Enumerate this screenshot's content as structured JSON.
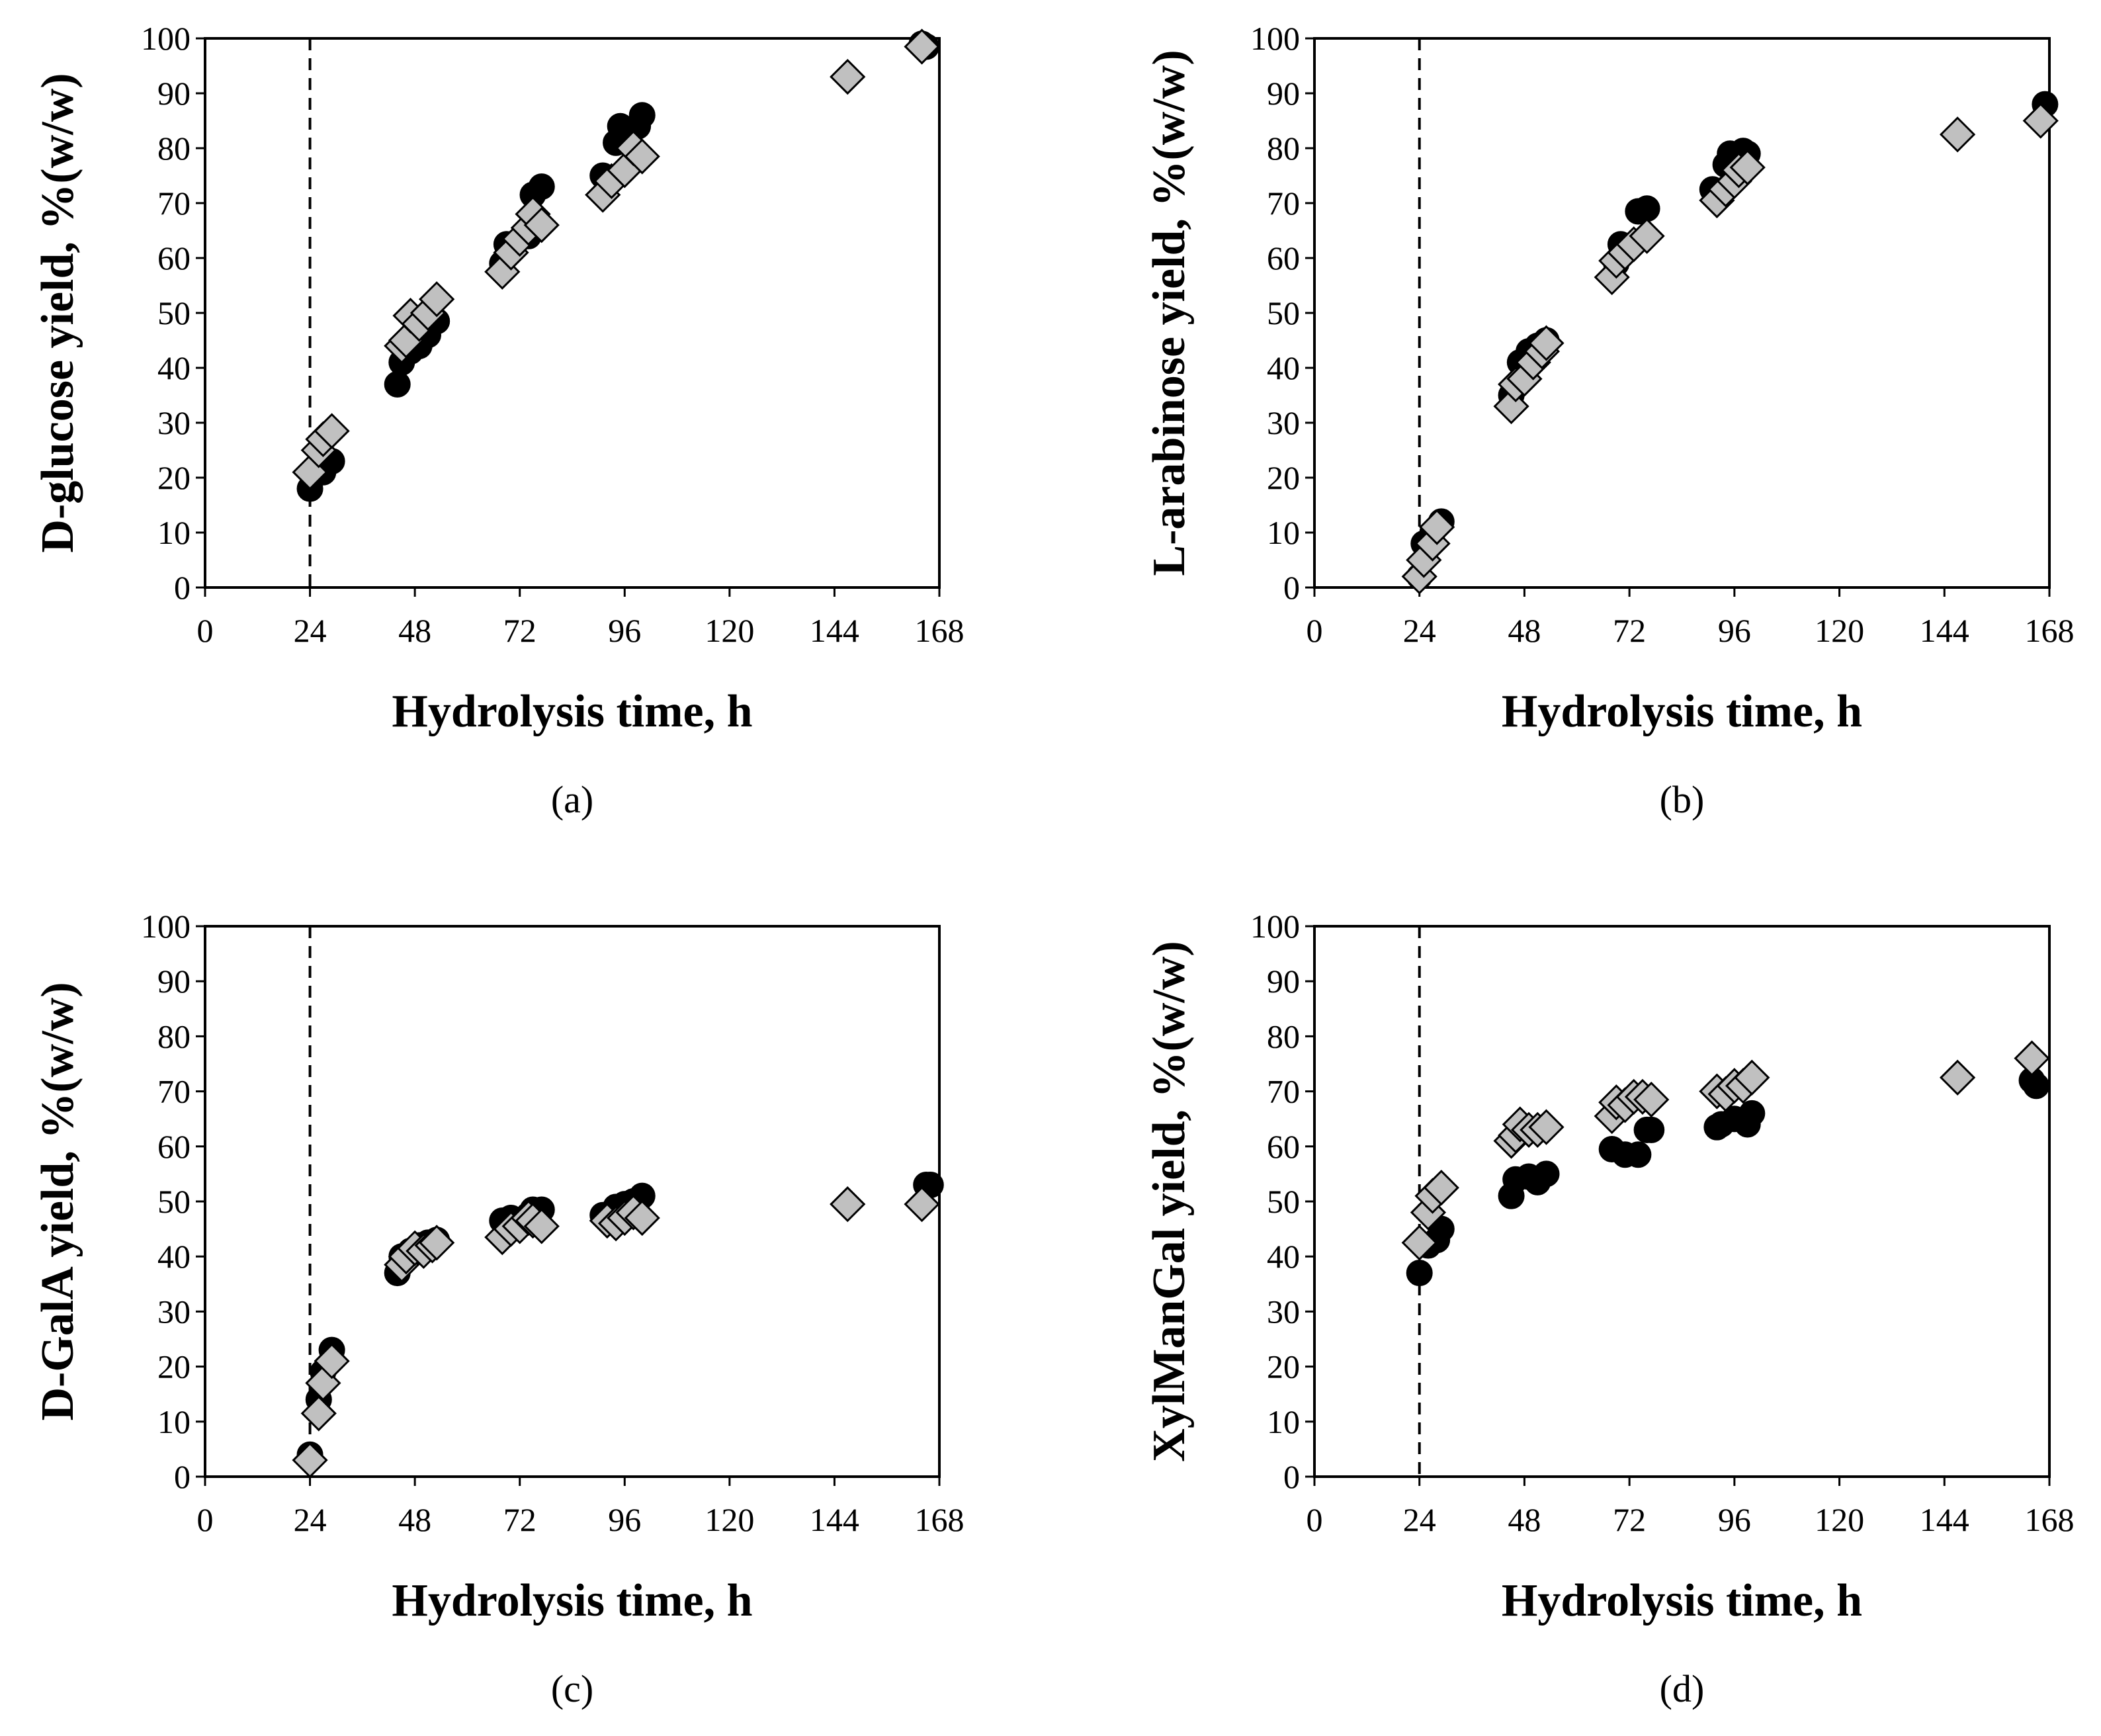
{
  "figure": {
    "panels": [
      "(a)",
      "(b)",
      "(c)",
      "(d)"
    ]
  },
  "chart_data": [
    {
      "type": "scatter",
      "caption": "(a)",
      "xlabel": "Hydrolysis time, h",
      "ylabel": "D-glucose yield, %(w/w)",
      "xlim": [
        0,
        168
      ],
      "ylim": [
        0,
        100
      ],
      "xticks": [
        0,
        24,
        48,
        72,
        96,
        120,
        144,
        168
      ],
      "yticks": [
        0,
        10,
        20,
        30,
        40,
        50,
        60,
        70,
        80,
        90,
        100
      ],
      "vline_x": 24,
      "series": [
        {
          "name": "circle",
          "marker": "circle",
          "color": "#000000",
          "points": [
            [
              24,
              18
            ],
            [
              27,
              21
            ],
            [
              29,
              23
            ],
            [
              44,
              37
            ],
            [
              45,
              41
            ],
            [
              47,
              43
            ],
            [
              49,
              44
            ],
            [
              51,
              46
            ],
            [
              53,
              48.5
            ],
            [
              68,
              59
            ],
            [
              69,
              62.5
            ],
            [
              74,
              64
            ],
            [
              75,
              71.5
            ],
            [
              77,
              73
            ],
            [
              91,
              75
            ],
            [
              94,
              81
            ],
            [
              95,
              84
            ],
            [
              99,
              84
            ],
            [
              100,
              86
            ],
            [
              164,
              99
            ],
            [
              165,
              98.5
            ]
          ]
        },
        {
          "name": "diamond",
          "marker": "diamond",
          "color": "#c0c0c0",
          "points": [
            [
              24,
              21
            ],
            [
              26,
              25
            ],
            [
              27,
              27
            ],
            [
              29,
              28.5
            ],
            [
              45,
              44
            ],
            [
              46,
              45
            ],
            [
              47,
              49.5
            ],
            [
              49,
              48
            ],
            [
              51,
              50
            ],
            [
              53,
              52.5
            ],
            [
              68,
              57.5
            ],
            [
              70,
              61
            ],
            [
              72,
              63.5
            ],
            [
              74,
              65.5
            ],
            [
              75,
              68
            ],
            [
              77,
              66
            ],
            [
              91,
              71.5
            ],
            [
              93,
              74
            ],
            [
              96,
              76
            ],
            [
              98,
              80
            ],
            [
              100,
              78.5
            ],
            [
              147,
              93
            ],
            [
              164,
              98.5
            ]
          ]
        }
      ]
    },
    {
      "type": "scatter",
      "caption": "(b)",
      "xlabel": "Hydrolysis time, h",
      "ylabel": "L-arabinose yield, %(w/w)",
      "xlim": [
        0,
        168
      ],
      "ylim": [
        0,
        100
      ],
      "xticks": [
        0,
        24,
        48,
        72,
        96,
        120,
        144,
        168
      ],
      "yticks": [
        0,
        10,
        20,
        30,
        40,
        50,
        60,
        70,
        80,
        90,
        100
      ],
      "vline_x": 24,
      "series": [
        {
          "name": "circle",
          "marker": "circle",
          "color": "#000000",
          "points": [
            [
              24,
              2
            ],
            [
              25,
              8
            ],
            [
              27,
              10
            ],
            [
              29,
              12
            ],
            [
              45,
              35
            ],
            [
              47,
              41
            ],
            [
              49,
              43
            ],
            [
              51,
              44
            ],
            [
              53,
              45
            ],
            [
              69,
              59
            ],
            [
              70,
              62.5
            ],
            [
              74,
              68.5
            ],
            [
              76,
              69
            ],
            [
              91,
              72.5
            ],
            [
              94,
              77
            ],
            [
              95,
              79
            ],
            [
              98,
              79.5
            ],
            [
              99,
              79
            ],
            [
              167,
              88
            ]
          ]
        },
        {
          "name": "diamond",
          "marker": "diamond",
          "color": "#c0c0c0",
          "points": [
            [
              24,
              2
            ],
            [
              25,
              5
            ],
            [
              27,
              8
            ],
            [
              28,
              11
            ],
            [
              45,
              33
            ],
            [
              46,
              37
            ],
            [
              48,
              38
            ],
            [
              50,
              41
            ],
            [
              52,
              43
            ],
            [
              53,
              44.5
            ],
            [
              68,
              56.5
            ],
            [
              69,
              59.5
            ],
            [
              71,
              61
            ],
            [
              73,
              62.5
            ],
            [
              76,
              64
            ],
            [
              92,
              70.5
            ],
            [
              94,
              72.5
            ],
            [
              96,
              74
            ],
            [
              97,
              76
            ],
            [
              99,
              76.5
            ],
            [
              147,
              82.5
            ],
            [
              166,
              85
            ]
          ]
        }
      ]
    },
    {
      "type": "scatter",
      "caption": "(c)",
      "xlabel": "Hydrolysis time, h",
      "ylabel": "D-GalA yield, %(w/w)",
      "xlim": [
        0,
        168
      ],
      "ylim": [
        0,
        100
      ],
      "xticks": [
        0,
        24,
        48,
        72,
        96,
        120,
        144,
        168
      ],
      "yticks": [
        0,
        10,
        20,
        30,
        40,
        50,
        60,
        70,
        80,
        90,
        100
      ],
      "vline_x": 24,
      "series": [
        {
          "name": "circle",
          "marker": "circle",
          "color": "#000000",
          "points": [
            [
              24,
              4
            ],
            [
              26,
              14
            ],
            [
              27,
              19
            ],
            [
              29,
              23
            ],
            [
              44,
              37
            ],
            [
              45,
              40
            ],
            [
              47,
              41
            ],
            [
              49,
              42
            ],
            [
              51,
              42.5
            ],
            [
              53,
              43
            ],
            [
              68,
              46.5
            ],
            [
              70,
              47
            ],
            [
              74,
              47.5
            ],
            [
              75,
              48.5
            ],
            [
              77,
              48.5
            ],
            [
              91,
              47.5
            ],
            [
              94,
              49
            ],
            [
              96,
              49.5
            ],
            [
              98,
              50
            ],
            [
              100,
              51
            ],
            [
              165,
              53
            ],
            [
              166,
              53
            ]
          ]
        },
        {
          "name": "diamond",
          "marker": "diamond",
          "color": "#c0c0c0",
          "points": [
            [
              24,
              3
            ],
            [
              26,
              11.5
            ],
            [
              27,
              17
            ],
            [
              29,
              21
            ],
            [
              45,
              38.5
            ],
            [
              46,
              40
            ],
            [
              48,
              41.5
            ],
            [
              50,
              41
            ],
            [
              52,
              42
            ],
            [
              53,
              42.5
            ],
            [
              68,
              43.5
            ],
            [
              70,
              45
            ],
            [
              72,
              45.5
            ],
            [
              74,
              47
            ],
            [
              75,
              46.5
            ],
            [
              77,
              45.5
            ],
            [
              92,
              46.5
            ],
            [
              94,
              46
            ],
            [
              96,
              47
            ],
            [
              98,
              48
            ],
            [
              100,
              47
            ],
            [
              147,
              49.5
            ],
            [
              164,
              49.5
            ]
          ]
        }
      ]
    },
    {
      "type": "scatter",
      "caption": "(d)",
      "xlabel": "Hydrolysis time, h",
      "ylabel": "XylManGal yield, %(w/w)",
      "xlim": [
        0,
        168
      ],
      "ylim": [
        0,
        100
      ],
      "xticks": [
        0,
        24,
        48,
        72,
        96,
        120,
        144,
        168
      ],
      "yticks": [
        0,
        10,
        20,
        30,
        40,
        50,
        60,
        70,
        80,
        90,
        100
      ],
      "vline_x": 24,
      "series": [
        {
          "name": "circle",
          "marker": "circle",
          "color": "#000000",
          "points": [
            [
              24,
              37
            ],
            [
              26,
              42
            ],
            [
              28,
              43
            ],
            [
              29,
              45
            ],
            [
              45,
              51
            ],
            [
              46,
              54
            ],
            [
              49,
              54.5
            ],
            [
              51,
              53.5
            ],
            [
              53,
              55
            ],
            [
              68,
              59.5
            ],
            [
              71,
              58.5
            ],
            [
              74,
              58.5
            ],
            [
              76,
              63
            ],
            [
              77,
              63
            ],
            [
              92,
              63.5
            ],
            [
              93,
              64
            ],
            [
              96,
              65
            ],
            [
              99,
              64
            ],
            [
              100,
              66
            ],
            [
              164,
              72
            ],
            [
              165,
              71
            ]
          ]
        },
        {
          "name": "diamond",
          "marker": "diamond",
          "color": "#c0c0c0",
          "points": [
            [
              24,
              42.5
            ],
            [
              26,
              48
            ],
            [
              27,
              51
            ],
            [
              29,
              52.5
            ],
            [
              45,
              61
            ],
            [
              46,
              62
            ],
            [
              47,
              64
            ],
            [
              49,
              63
            ],
            [
              51,
              63
            ],
            [
              53,
              63.5
            ],
            [
              68,
              65.5
            ],
            [
              69,
              68
            ],
            [
              71,
              67.5
            ],
            [
              73,
              69
            ],
            [
              75,
              69
            ],
            [
              77,
              68.5
            ],
            [
              92,
              70
            ],
            [
              94,
              69.5
            ],
            [
              96,
              71
            ],
            [
              98,
              71
            ],
            [
              100,
              72.5
            ],
            [
              147,
              72.5
            ],
            [
              164,
              76
            ]
          ]
        }
      ]
    }
  ]
}
